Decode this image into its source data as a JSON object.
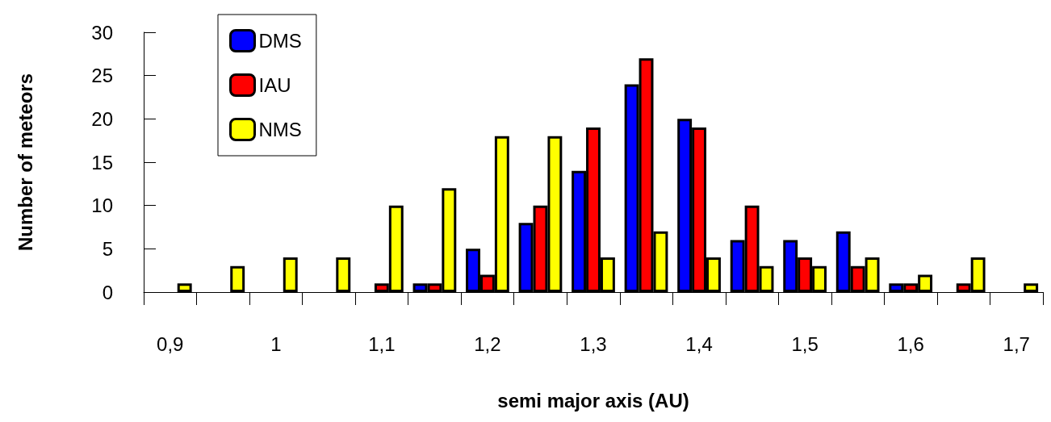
{
  "chart_data": {
    "type": "bar",
    "xlabel": "semi major axis (AU)",
    "ylabel": "Number of meteors",
    "categories": [
      "0,9",
      null,
      "1",
      null,
      "1,1",
      null,
      "1,2",
      null,
      "1,3",
      null,
      "1,4",
      null,
      "1,5",
      null,
      "1,6",
      null,
      "1,7"
    ],
    "series": [
      {
        "name": "DMS",
        "color": "#0000ff",
        "values": [
          0,
          0,
          0,
          0,
          0,
          1,
          5,
          8,
          14,
          24,
          20,
          6,
          6,
          7,
          1,
          0,
          0
        ]
      },
      {
        "name": "IAU",
        "color": "#ff0000",
        "values": [
          0,
          0,
          0,
          0,
          1,
          1,
          2,
          10,
          19,
          27,
          19,
          10,
          4,
          3,
          1,
          1,
          0
        ]
      },
      {
        "name": "NMS",
        "color": "#ffff00",
        "values": [
          1,
          3,
          4,
          4,
          10,
          12,
          18,
          18,
          4,
          7,
          4,
          3,
          3,
          4,
          2,
          4,
          1
        ]
      }
    ],
    "ylim": [
      0,
      30
    ],
    "yticks": [
      0,
      5,
      10,
      15,
      20,
      25,
      30
    ],
    "grid": false,
    "legend": "top left"
  }
}
